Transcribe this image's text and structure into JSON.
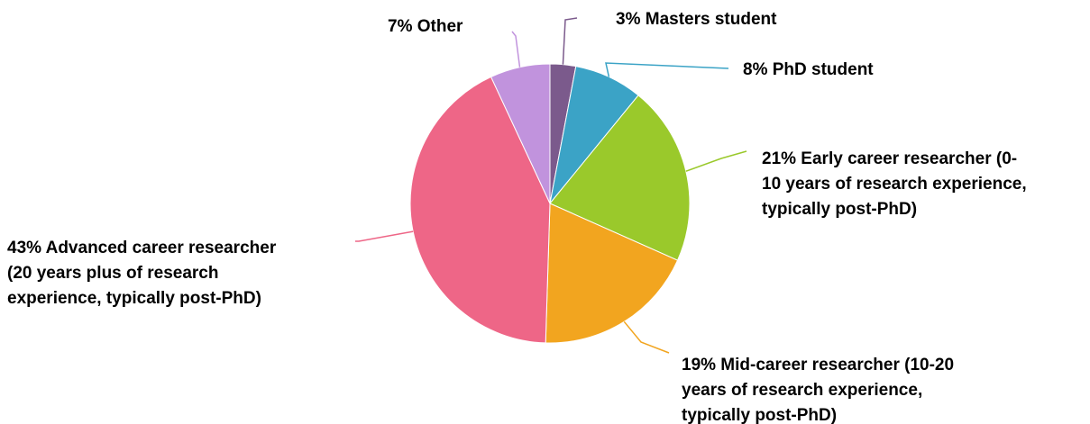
{
  "chart_data": {
    "type": "pie",
    "title": "",
    "slices": [
      {
        "name": "Masters student",
        "value": 3,
        "label_lines": [
          "3% Masters student"
        ],
        "color": "#7b5a8c"
      },
      {
        "name": "PhD student",
        "value": 8,
        "label_lines": [
          "8% PhD student"
        ],
        "color": "#3ba3c6"
      },
      {
        "name": "Early career researcher (0-10 years of research experience, typically post-PhD)",
        "value": 21,
        "label_lines": [
          "21% Early career researcher (0-",
          "10 years of research experience,",
          "typically post-PhD)"
        ],
        "color": "#9ac92b"
      },
      {
        "name": "Mid-career researcher (10-20 years of research experience, typically post-PhD)",
        "value": 19,
        "label_lines": [
          "19% Mid-career researcher (10-20",
          "years of research experience,",
          "typically post-PhD)"
        ],
        "color": "#f2a51f"
      },
      {
        "name": "Advanced career researcher (20 years plus of research experience, typically post-PhD)",
        "value": 43,
        "label_lines": [
          "43% Advanced career researcher",
          "(20 years plus of research",
          "experience, typically post-PhD)"
        ],
        "color": "#ee6687"
      },
      {
        "name": "Other",
        "value": 7,
        "label_lines": [
          "7% Other"
        ],
        "color": "#c193dd"
      }
    ],
    "start_direction": "12 o'clock",
    "direction": "clockwise",
    "legend": "none"
  }
}
